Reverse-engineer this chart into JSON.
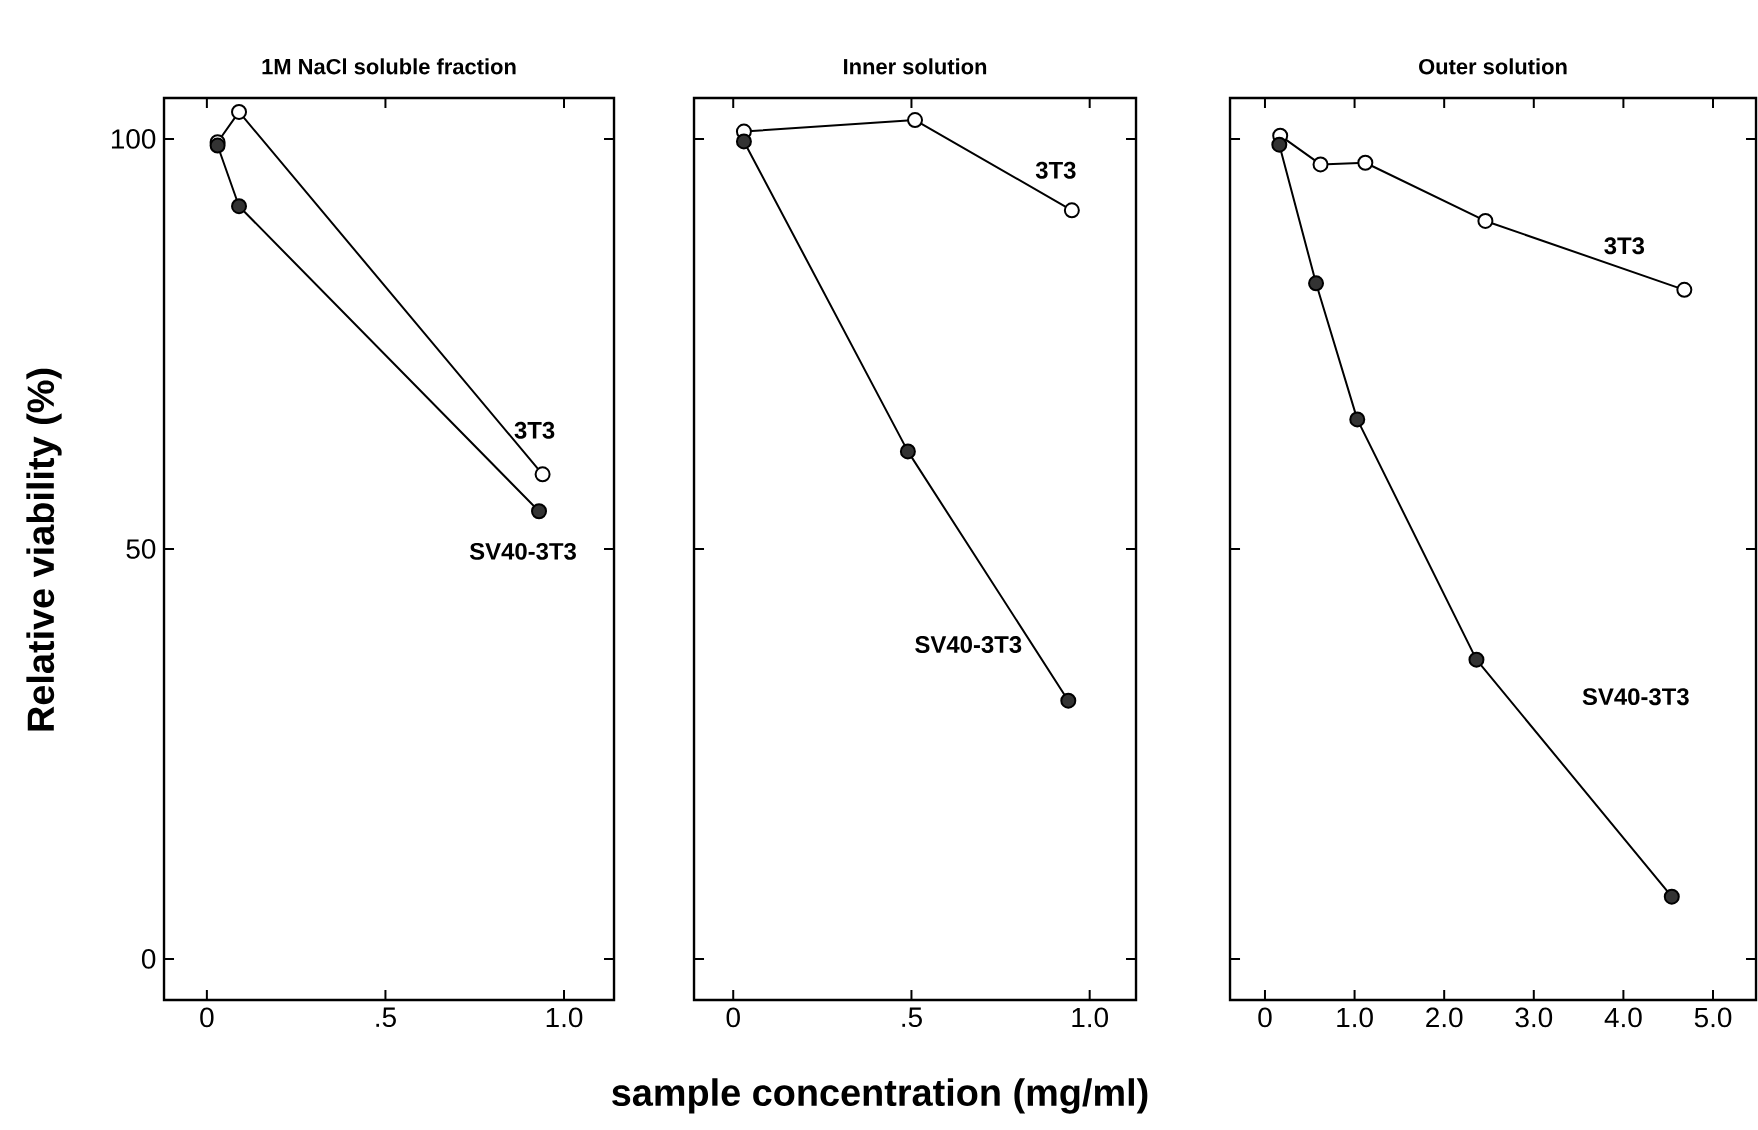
{
  "chart_data": [
    {
      "type": "line",
      "title": "1M NaCl soluble fraction",
      "ylabel": "Relative viability (%)",
      "xlim": [
        -0.12,
        1.14
      ],
      "ylim": [
        -5,
        105
      ],
      "xticks": [
        0,
        {
          "value": 0.5,
          "label": ".5"
        },
        {
          "value": 1,
          "label": "1.0"
        }
      ],
      "yticks": [
        0,
        50,
        100
      ],
      "marker": "circle",
      "series": [
        {
          "name": "3T3",
          "color": "#ffffff",
          "x": [
            0.03,
            0.09,
            0.94
          ],
          "values": [
            99.6,
            103.3,
            59.1
          ]
        },
        {
          "name": "SV40-3T3",
          "color": "#333333",
          "x": [
            0.03,
            0.09,
            0.93
          ],
          "values": [
            99.2,
            91.8,
            54.6
          ]
        }
      ]
    },
    {
      "type": "line",
      "title": "Inner solution",
      "xlabel": "sample concentration (mg/ml)",
      "xlim": [
        -0.11,
        1.13
      ],
      "ylim": [
        -5,
        105
      ],
      "xticks": [
        0,
        {
          "value": 0.5,
          "label": ".5"
        },
        {
          "value": 1,
          "label": "1.0"
        }
      ],
      "yticks": [
        0,
        50,
        100
      ],
      "tick_labels": "x",
      "marker": "circle",
      "series": [
        {
          "name": "3T3",
          "color": "#ffffff",
          "x": [
            0.03,
            0.51,
            0.95
          ],
          "values": [
            100.9,
            102.3,
            91.3
          ]
        },
        {
          "name": "SV40-3T3",
          "color": "#333333",
          "x": [
            0.03,
            0.49,
            0.94
          ],
          "values": [
            99.7,
            61.9,
            31.5
          ]
        }
      ]
    },
    {
      "type": "line",
      "title": "Outer solution",
      "xlim": [
        -0.39,
        5.48
      ],
      "ylim": [
        -5,
        105
      ],
      "xticks": [
        0,
        {
          "value": 1,
          "label": "1.0"
        },
        {
          "value": 2,
          "label": "2.0"
        },
        {
          "value": 3,
          "label": "3.0"
        },
        {
          "value": 4,
          "label": "4.0"
        },
        {
          "value": 5,
          "label": "5.0"
        }
      ],
      "yticks": [
        0,
        50,
        100
      ],
      "tick_labels": "x",
      "marker": "circle",
      "series": [
        {
          "name": "3T3",
          "color": "#ffffff",
          "x": [
            0.17,
            0.62,
            1.12,
            2.46,
            4.68
          ],
          "values": [
            100.4,
            96.9,
            97.1,
            90.0,
            81.6
          ]
        },
        {
          "name": "SV40-3T3",
          "color": "#333333",
          "x": [
            0.16,
            0.57,
            1.03,
            2.36,
            4.54
          ],
          "values": [
            99.3,
            82.4,
            65.8,
            36.5,
            7.6
          ]
        }
      ]
    }
  ]
}
